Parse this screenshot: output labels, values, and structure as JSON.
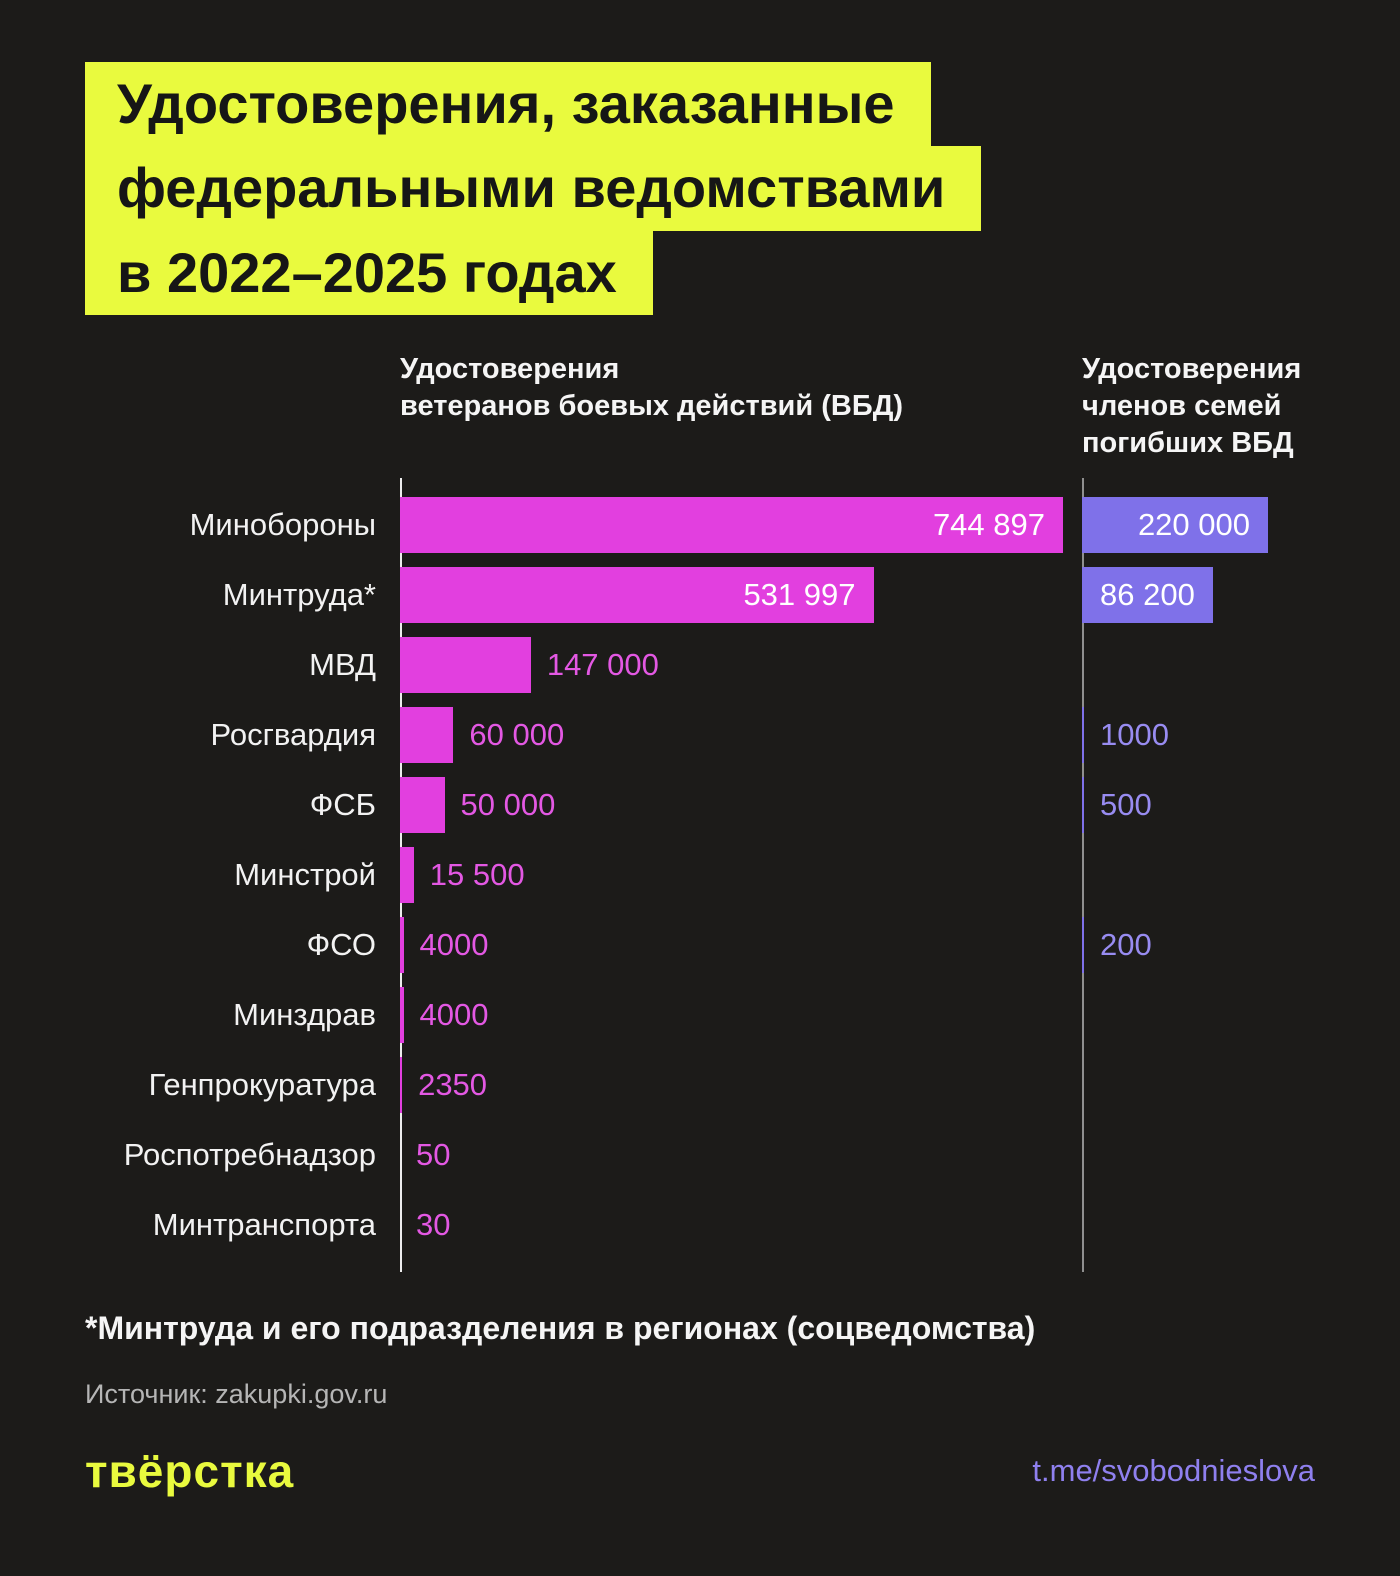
{
  "title": {
    "line1": "Удостоверения, заказанные",
    "line2": "федеральными ведомствами",
    "line3": "в 2022–2025 годах"
  },
  "headers": {
    "col1": "Удостоверения\nветеранов боевых действий (ВБД)",
    "col2": "Удостоверения\nчленов семей\nпогибших ВБД"
  },
  "chart_data": {
    "type": "bar",
    "orientation": "horizontal",
    "title": "Удостоверения, заказанные федеральными ведомствами в 2022–2025 годах",
    "categories": [
      "Минобороны",
      "Минтруда*",
      "МВД",
      "Росгвардия",
      "ФСБ",
      "Минстрой",
      "ФСО",
      "Минздрав",
      "Генпрокуратура",
      "Роспотребнадзор",
      "Минтранспорта"
    ],
    "series": [
      {
        "name": "Удостоверения ветеранов боевых действий (ВБД)",
        "color": "#e23fdf",
        "label_text_color": "#e358e3",
        "values": [
          744897,
          531997,
          147000,
          60000,
          50000,
          15500,
          4000,
          4000,
          2350,
          50,
          30
        ],
        "labels": [
          "744 897",
          "531 997",
          "147 000",
          "60 000",
          "50 000",
          "15 500",
          "4000",
          "4000",
          "2350",
          "50",
          "30"
        ],
        "label_placement": [
          "inside",
          "inside",
          "outside",
          "outside",
          "outside",
          "outside",
          "outside",
          "outside",
          "outside",
          "outside",
          "outside"
        ]
      },
      {
        "name": "Удостоверения членов семей погибших ВБД",
        "color": "#7f71e9",
        "label_text_color": "#988cf1",
        "values": [
          220000,
          86200,
          null,
          1000,
          500,
          null,
          200,
          null,
          null,
          null,
          null
        ],
        "labels": [
          "220 000",
          "86 200",
          "",
          "1000",
          "500",
          "",
          "200",
          "",
          "",
          "",
          ""
        ],
        "label_placement": [
          "inside",
          "inside",
          "none",
          "outside",
          "outside",
          "none",
          "outside",
          "none",
          "none",
          "none",
          "none"
        ]
      }
    ],
    "xlim": [
      0,
      768000
    ],
    "grid": false,
    "legend_position": "top-as-column-headers"
  },
  "footnote": "*Минтруда и его подразделения в регионах (соцведомства)",
  "source": "Источник: zakupki.gov.ru",
  "footer": {
    "logo": "твёрстка",
    "link": "t.me/svobodnieslova"
  },
  "colors": {
    "background": "#1c1b19",
    "title_highlight": "#e9fa3e",
    "bar_vbd": "#e23fdf",
    "bar_family": "#7f71e9",
    "axis_left": "#ededed",
    "axis_right": "#8f8f8f",
    "text_primary": "#f5f5f5",
    "text_muted": "#b5b5b5"
  }
}
